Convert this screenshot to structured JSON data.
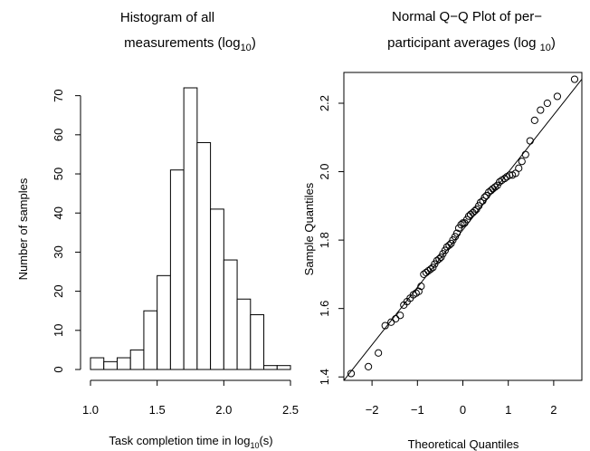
{
  "chart_data": [
    {
      "type": "bar",
      "title": "Histogram of all measurements (log10)",
      "title_lines": [
        "Histogram of all",
        "measurements (log",
        "10",
        ")"
      ],
      "xlabel": "Task completion time in log10(s)",
      "xlabel_parts": [
        "Task completion time in log",
        "10",
        "(s)"
      ],
      "ylabel": "Number of samples",
      "bin_edges": [
        1.0,
        1.1,
        1.2,
        1.3,
        1.4,
        1.5,
        1.6,
        1.7,
        1.8,
        1.9,
        2.0,
        2.1,
        2.2,
        2.3,
        2.4,
        2.5
      ],
      "values": [
        3,
        2,
        3,
        5,
        15,
        24,
        51,
        72,
        58,
        41,
        28,
        18,
        14,
        1,
        1
      ],
      "xlim": [
        1.0,
        2.5
      ],
      "ylim": [
        0,
        72
      ],
      "xticks": [
        1.0,
        1.5,
        2.0,
        2.5
      ],
      "xtick_labels": [
        "1.0",
        "1.5",
        "2.0",
        "2.5"
      ],
      "yticks": [
        0,
        10,
        20,
        30,
        40,
        50,
        60,
        70
      ],
      "ytick_labels": [
        "0",
        "10",
        "20",
        "30",
        "40",
        "50",
        "60",
        "70"
      ],
      "grid": false
    },
    {
      "type": "scatter",
      "title": "Normal Q−Q Plot of per−participant averages (log10)",
      "title_lines": [
        "Normal Q−Q Plot of per−",
        "participant averages (log ",
        "10",
        ")"
      ],
      "xlabel": "Theoretical Quantiles",
      "ylabel": "Sample Quantiles",
      "x": [
        -2.46,
        -2.08,
        -1.86,
        -1.71,
        -1.58,
        -1.48,
        -1.38,
        -1.3,
        -1.23,
        -1.16,
        -1.09,
        -1.03,
        -0.97,
        -0.92,
        -0.86,
        -0.81,
        -0.76,
        -0.71,
        -0.66,
        -0.62,
        -0.57,
        -0.52,
        -0.48,
        -0.44,
        -0.39,
        -0.35,
        -0.3,
        -0.26,
        -0.22,
        -0.17,
        -0.13,
        -0.09,
        -0.04,
        0.0,
        0.04,
        0.09,
        0.13,
        0.17,
        0.22,
        0.26,
        0.3,
        0.35,
        0.39,
        0.44,
        0.48,
        0.52,
        0.57,
        0.62,
        0.66,
        0.71,
        0.76,
        0.81,
        0.86,
        0.92,
        0.97,
        1.03,
        1.09,
        1.16,
        1.23,
        1.3,
        1.38,
        1.48,
        1.58,
        1.71,
        1.86,
        2.08,
        2.46
      ],
      "y": [
        1.41,
        1.43,
        1.47,
        1.55,
        1.56,
        1.57,
        1.58,
        1.61,
        1.62,
        1.63,
        1.64,
        1.645,
        1.65,
        1.665,
        1.7,
        1.705,
        1.71,
        1.715,
        1.72,
        1.73,
        1.74,
        1.745,
        1.75,
        1.76,
        1.77,
        1.78,
        1.785,
        1.79,
        1.8,
        1.81,
        1.82,
        1.835,
        1.845,
        1.85,
        1.85,
        1.86,
        1.87,
        1.875,
        1.88,
        1.885,
        1.89,
        1.9,
        1.91,
        1.915,
        1.925,
        1.93,
        1.94,
        1.945,
        1.95,
        1.955,
        1.96,
        1.97,
        1.975,
        1.98,
        1.985,
        1.99,
        1.99,
        1.995,
        2.01,
        2.03,
        2.05,
        2.09,
        2.15,
        2.18,
        2.2,
        2.22,
        2.27
      ],
      "reference_line": {
        "intercept": 1.83,
        "slope": 0.168
      },
      "xlim": [
        -2.62,
        2.62
      ],
      "ylim": [
        1.39,
        2.29
      ],
      "xticks": [
        -2,
        -1,
        0,
        1,
        2
      ],
      "xtick_labels": [
        "−2",
        "−1",
        "0",
        "1",
        "2"
      ],
      "yticks": [
        1.4,
        1.6,
        1.8,
        2.0,
        2.2
      ],
      "ytick_labels": [
        "1.4",
        "1.6",
        "1.8",
        "2.0",
        "2.2"
      ],
      "grid": false
    }
  ]
}
